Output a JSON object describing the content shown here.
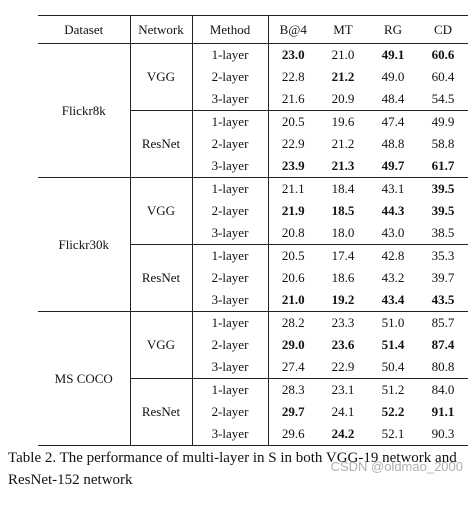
{
  "table": {
    "headers": [
      "Dataset",
      "Network",
      "Method",
      "B@4",
      "MT",
      "RG",
      "CD"
    ],
    "datasets": [
      {
        "name": "Flickr8k",
        "networks": [
          {
            "name": "VGG",
            "rows": [
              {
                "method": "1-layer",
                "values": [
                  "23.0",
                  "21.0",
                  "49.1",
                  "60.6"
                ],
                "bold": [
                  true,
                  false,
                  true,
                  true
                ]
              },
              {
                "method": "2-layer",
                "values": [
                  "22.8",
                  "21.2",
                  "49.0",
                  "60.4"
                ],
                "bold": [
                  false,
                  true,
                  false,
                  false
                ]
              },
              {
                "method": "3-layer",
                "values": [
                  "21.6",
                  "20.9",
                  "48.4",
                  "54.5"
                ],
                "bold": [
                  false,
                  false,
                  false,
                  false
                ]
              }
            ]
          },
          {
            "name": "ResNet",
            "rows": [
              {
                "method": "1-layer",
                "values": [
                  "20.5",
                  "19.6",
                  "47.4",
                  "49.9"
                ],
                "bold": [
                  false,
                  false,
                  false,
                  false
                ]
              },
              {
                "method": "2-layer",
                "values": [
                  "22.9",
                  "21.2",
                  "48.8",
                  "58.8"
                ],
                "bold": [
                  false,
                  false,
                  false,
                  false
                ]
              },
              {
                "method": "3-layer",
                "values": [
                  "23.9",
                  "21.3",
                  "49.7",
                  "61.7"
                ],
                "bold": [
                  true,
                  true,
                  true,
                  true
                ]
              }
            ]
          }
        ]
      },
      {
        "name": "Flickr30k",
        "networks": [
          {
            "name": "VGG",
            "rows": [
              {
                "method": "1-layer",
                "values": [
                  "21.1",
                  "18.4",
                  "43.1",
                  "39.5"
                ],
                "bold": [
                  false,
                  false,
                  false,
                  true
                ]
              },
              {
                "method": "2-layer",
                "values": [
                  "21.9",
                  "18.5",
                  "44.3",
                  "39.5"
                ],
                "bold": [
                  true,
                  true,
                  true,
                  true
                ]
              },
              {
                "method": "3-layer",
                "values": [
                  "20.8",
                  "18.0",
                  "43.0",
                  "38.5"
                ],
                "bold": [
                  false,
                  false,
                  false,
                  false
                ]
              }
            ]
          },
          {
            "name": "ResNet",
            "rows": [
              {
                "method": "1-layer",
                "values": [
                  "20.5",
                  "17.4",
                  "42.8",
                  "35.3"
                ],
                "bold": [
                  false,
                  false,
                  false,
                  false
                ]
              },
              {
                "method": "2-layer",
                "values": [
                  "20.6",
                  "18.6",
                  "43.2",
                  "39.7"
                ],
                "bold": [
                  false,
                  false,
                  false,
                  false
                ]
              },
              {
                "method": "3-layer",
                "values": [
                  "21.0",
                  "19.2",
                  "43.4",
                  "43.5"
                ],
                "bold": [
                  true,
                  true,
                  true,
                  true
                ]
              }
            ]
          }
        ]
      },
      {
        "name": "MS COCO",
        "networks": [
          {
            "name": "VGG",
            "rows": [
              {
                "method": "1-layer",
                "values": [
                  "28.2",
                  "23.3",
                  "51.0",
                  "85.7"
                ],
                "bold": [
                  false,
                  false,
                  false,
                  false
                ]
              },
              {
                "method": "2-layer",
                "values": [
                  "29.0",
                  "23.6",
                  "51.4",
                  "87.4"
                ],
                "bold": [
                  true,
                  true,
                  true,
                  true
                ]
              },
              {
                "method": "3-layer",
                "values": [
                  "27.4",
                  "22.9",
                  "50.4",
                  "80.8"
                ],
                "bold": [
                  false,
                  false,
                  false,
                  false
                ]
              }
            ]
          },
          {
            "name": "ResNet",
            "rows": [
              {
                "method": "1-layer",
                "values": [
                  "28.3",
                  "23.1",
                  "51.2",
                  "84.0"
                ],
                "bold": [
                  false,
                  false,
                  false,
                  false
                ]
              },
              {
                "method": "2-layer",
                "values": [
                  "29.7",
                  "24.1",
                  "52.2",
                  "91.1"
                ],
                "bold": [
                  true,
                  false,
                  true,
                  true
                ]
              },
              {
                "method": "3-layer",
                "values": [
                  "29.6",
                  "24.2",
                  "52.1",
                  "90.3"
                ],
                "bold": [
                  false,
                  true,
                  false,
                  false
                ]
              }
            ]
          }
        ]
      }
    ]
  },
  "caption": "Table 2. The performance of multi-layer in S in both VGG-19 network and ResNet-152 network",
  "watermark": "CSDN @oldmao_2000"
}
